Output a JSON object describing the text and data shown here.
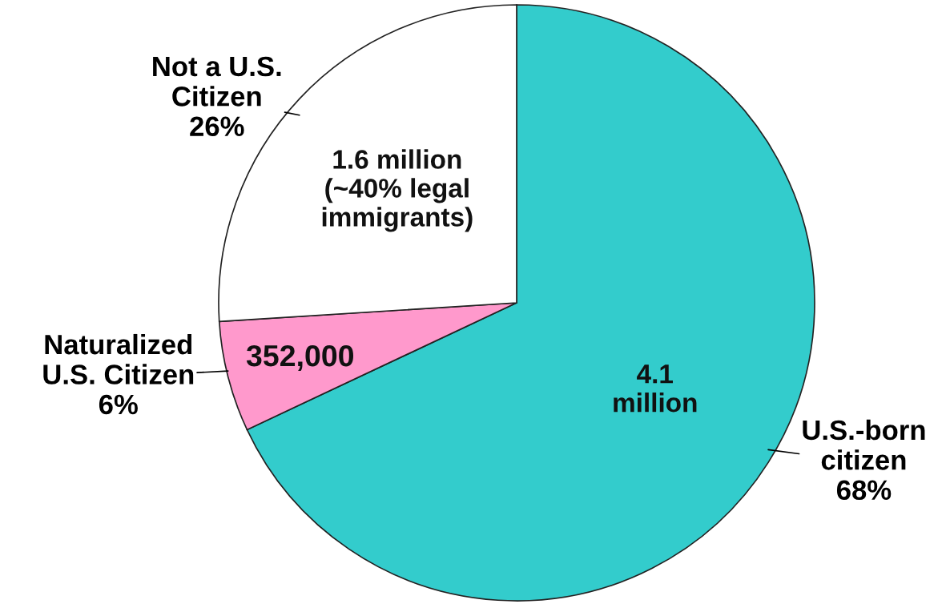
{
  "chart_data": {
    "type": "pie",
    "categories": [
      "U.S.-born\ncitizen",
      "Naturalized\nU.S. Citizen",
      "Not a U.S.\nCitizen"
    ],
    "values": [
      68,
      6,
      26
    ],
    "colors": [
      "#33cccc",
      "#ff99cc",
      "#ffffff"
    ],
    "value_labels": [
      "68%",
      "6%",
      "26%"
    ],
    "annotations": [
      "4.1\nmillion",
      "352,000",
      "1.6 million\n(~40% legal\nimmigrants)"
    ]
  }
}
